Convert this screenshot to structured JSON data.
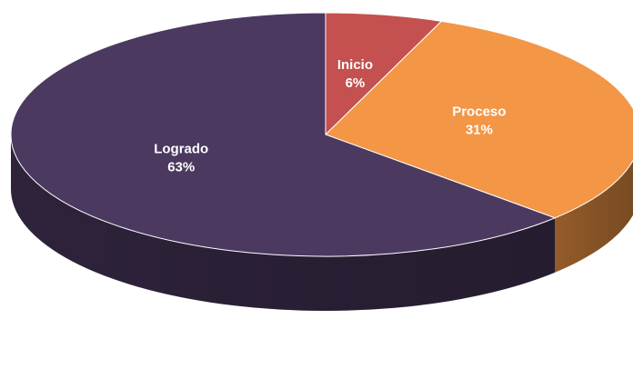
{
  "chart_data": {
    "type": "pie3d",
    "categories": [
      "Inicio",
      "Proceso",
      "Logrado"
    ],
    "values": [
      6,
      31,
      63
    ],
    "value_labels": [
      "6%",
      "31%",
      "63%"
    ],
    "colors": [
      "#c4504f",
      "#f39646",
      "#4b3960"
    ]
  }
}
